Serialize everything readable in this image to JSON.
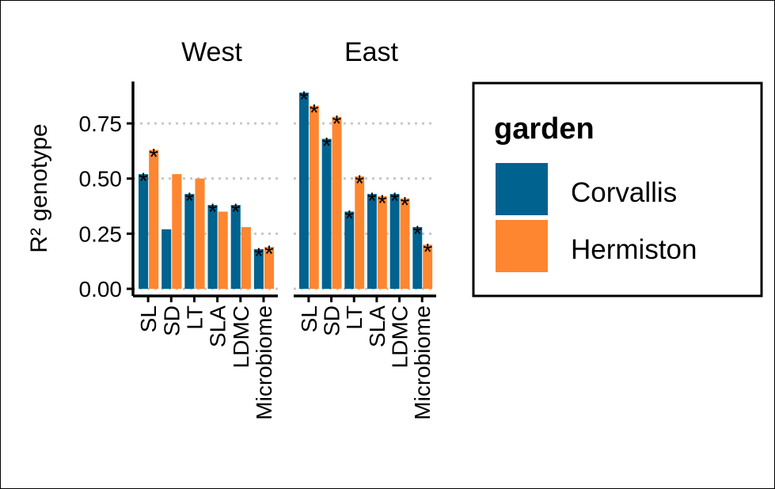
{
  "chart_data": {
    "type": "bar",
    "ylabel": "R² genotype",
    "yticks": [
      "0.00",
      "0.25",
      "0.50",
      "0.75"
    ],
    "ylim": [
      0,
      0.93
    ],
    "grid": "horizontal dotted at major ticks",
    "categories": [
      "SL",
      "SD",
      "LT",
      "SLA",
      "LDMC",
      "Microbiome"
    ],
    "legend": {
      "title": "garden",
      "position": "right",
      "entries": [
        {
          "name": "Corvallis",
          "color": "#00628F"
        },
        {
          "name": "Hermiston",
          "color": "#FF8630"
        }
      ]
    },
    "facets": [
      {
        "title": "West",
        "series": [
          {
            "name": "Corvallis",
            "values": [
              0.52,
              0.27,
              0.43,
              0.38,
              0.38,
              0.18
            ],
            "significant": [
              true,
              false,
              true,
              true,
              true,
              true
            ]
          },
          {
            "name": "Hermiston",
            "values": [
              0.63,
              0.52,
              0.5,
              0.35,
              0.28,
              0.19
            ],
            "significant": [
              true,
              false,
              false,
              false,
              false,
              true
            ]
          }
        ]
      },
      {
        "title": "East",
        "series": [
          {
            "name": "Corvallis",
            "values": [
              0.89,
              0.68,
              0.35,
              0.43,
              0.43,
              0.28
            ],
            "significant": [
              true,
              true,
              true,
              true,
              true,
              true
            ]
          },
          {
            "name": "Hermiston",
            "values": [
              0.83,
              0.78,
              0.51,
              0.42,
              0.41,
              0.2
            ],
            "significant": [
              true,
              true,
              true,
              true,
              true,
              true
            ]
          }
        ]
      }
    ]
  }
}
